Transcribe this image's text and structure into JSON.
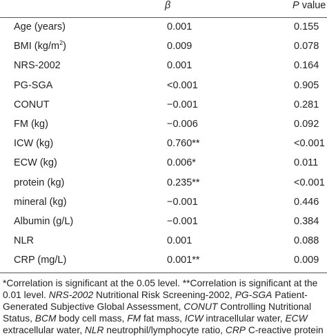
{
  "header": {
    "beta": "β",
    "p_italic": "P",
    "p_rest": " value"
  },
  "rows": [
    {
      "label": "Age (years)",
      "beta": "0.001",
      "p": "0.155"
    },
    {
      "label_pre": "BMI (kg/m",
      "label_sup": "2",
      "label_post": ")",
      "beta": "0.009",
      "p": "0.078"
    },
    {
      "label": "NRS-2002",
      "beta": "0.001",
      "p": "0.164"
    },
    {
      "label": "PG-SGA",
      "beta": "<0.001",
      "p": "0.905"
    },
    {
      "label": "CONUT",
      "beta": "−0.001",
      "p": "0.281"
    },
    {
      "label": "FM (kg)",
      "beta": "−0.006",
      "p": "0.092"
    },
    {
      "label": "ICW (kg)",
      "beta": "0.760**",
      "p": "<0.001"
    },
    {
      "label": "ECW (kg)",
      "beta": "0.006*",
      "p": "0.011"
    },
    {
      "label": "protein (kg)",
      "beta": "0.235**",
      "p": "<0.001"
    },
    {
      "label": "mineral (kg)",
      "beta": "−0.001",
      "p": "0.446"
    },
    {
      "label": "Albumin (g/L)",
      "beta": "−0.001",
      "p": "0.384"
    },
    {
      "label": "NLR",
      "beta": "0.001",
      "p": "0.088"
    },
    {
      "label": "CRP (mg/L)",
      "beta": "0.001**",
      "p": "0.009"
    }
  ],
  "footnote": [
    {
      "t": "*Correlation is significant at the 0.05 level. **Correlation is significant at the 0.01 level. "
    },
    {
      "t": "NRS-2002",
      "i": true
    },
    {
      "t": " Nutritional Risk Screening-2002, "
    },
    {
      "t": "PG-SGA",
      "i": true
    },
    {
      "t": " Patient-Generated Subjective Global Assessment, "
    },
    {
      "t": "CONUT",
      "i": true
    },
    {
      "t": " Controlling Nutritional Status, "
    },
    {
      "t": "BCM",
      "i": true
    },
    {
      "t": " body cell mass, "
    },
    {
      "t": "FM",
      "i": true
    },
    {
      "t": " fat mass, "
    },
    {
      "t": "ICW",
      "i": true
    },
    {
      "t": " intracellular water, "
    },
    {
      "t": "ECW",
      "i": true
    },
    {
      "t": " extracellular water, "
    },
    {
      "t": "NLR",
      "i": true
    },
    {
      "t": " neutrophil/lymphocyte ratio, "
    },
    {
      "t": "CRP",
      "i": true
    },
    {
      "t": " C-reactive protein"
    }
  ]
}
